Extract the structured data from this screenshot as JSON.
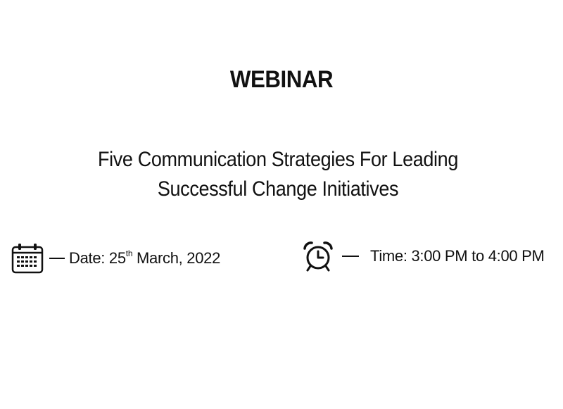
{
  "header": {
    "title": "WEBINAR"
  },
  "topic": {
    "line1": "Five Communication Strategies For Leading",
    "line2": "Successful Change Initiatives"
  },
  "date": {
    "prefix": "Date: 25",
    "suffix_sup": "th",
    "rest": " March, 2022",
    "icon": "calendar-icon"
  },
  "time": {
    "text": "Time: 3:00 PM to 4:00 PM",
    "icon": "alarm-clock-icon"
  }
}
